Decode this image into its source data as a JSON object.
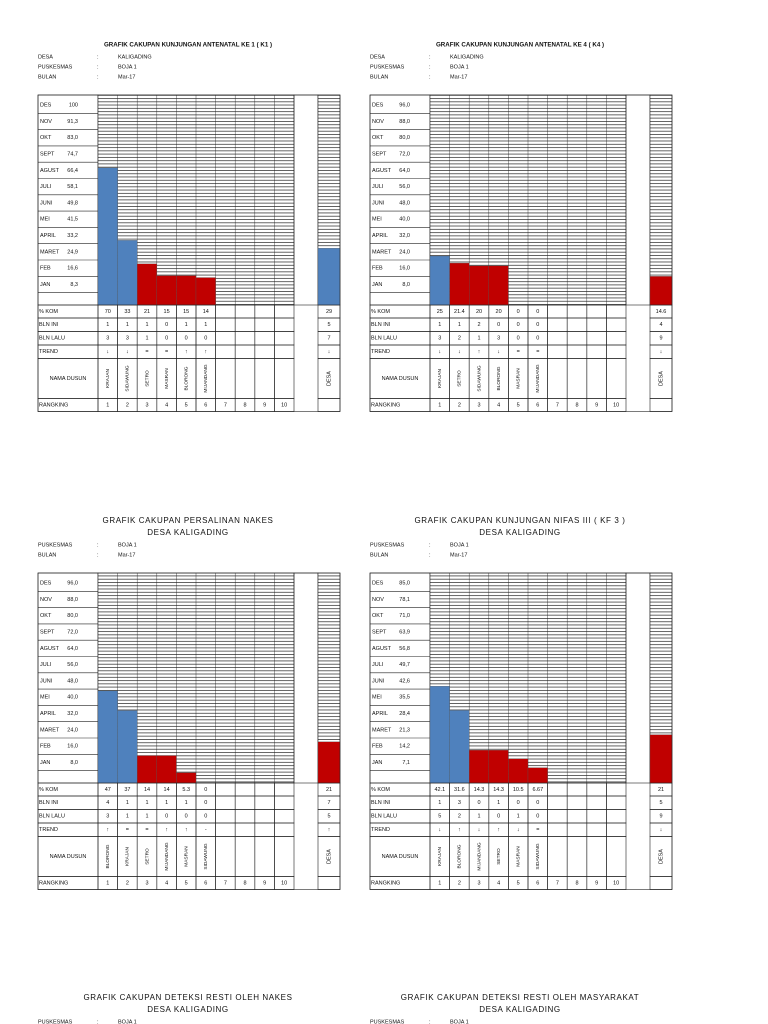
{
  "row_labels": {
    "kom": "% KOM",
    "bln_ini": "BLN INI",
    "bln_lalu": "BLN LALU",
    "trend": "TREND",
    "nama_dusun": "NAMA DUSUN",
    "rangking": "RANGKING"
  },
  "sep": ":",
  "panels": [
    {
      "title": "GRAFIK CAKUPAN KUNJUNGAN ANTENATAL KE 1 ( K1 )",
      "info": [
        {
          "label": "DESA",
          "value": "KALIGADING"
        },
        {
          "label": "PUSKESMAS",
          "value": "BOJA 1"
        },
        {
          "label": "BULAN",
          "value": "Mar-17"
        }
      ],
      "ylim": [
        0,
        100
      ],
      "months": [
        {
          "label": "DES",
          "target": "100"
        },
        {
          "label": "NOV",
          "target": "91,3"
        },
        {
          "label": "OKT",
          "target": "83,0"
        },
        {
          "label": "SEPT",
          "target": "74,7"
        },
        {
          "label": "AGUST",
          "target": "66,4"
        },
        {
          "label": "JULI",
          "target": "58,1"
        },
        {
          "label": "JUNI",
          "target": "49,8"
        },
        {
          "label": "MEI",
          "target": "41,5"
        },
        {
          "label": "APRIL",
          "target": "33,2"
        },
        {
          "label": "MARET",
          "target": "24,9"
        },
        {
          "label": "FEB",
          "target": "16,6"
        },
        {
          "label": "JAN",
          "target": "8,3"
        }
      ],
      "dusun": [
        {
          "name": "KRAJAN",
          "kom": 70,
          "bln_ini": 1,
          "bln_lalu": 3,
          "trend": "↓",
          "color": "#4f81bd"
        },
        {
          "name": "SIDAWUNG",
          "kom": 33,
          "bln_ini": 1,
          "bln_lalu": 3,
          "trend": "↓",
          "color": "#4f81bd"
        },
        {
          "name": "SETRO",
          "kom": 21,
          "bln_ini": 1,
          "bln_lalu": 1,
          "trend": "=",
          "color": "#c00000"
        },
        {
          "name": "MASRAN",
          "kom": 15,
          "bln_ini": 0,
          "bln_lalu": 0,
          "trend": "=",
          "color": "#c00000"
        },
        {
          "name": "BLORONG",
          "kom": 15,
          "bln_ini": 1,
          "bln_lalu": 0,
          "trend": "↑",
          "color": "#c00000"
        },
        {
          "name": "MIJANDANG",
          "kom": 14,
          "bln_ini": 1,
          "bln_lalu": 0,
          "trend": "↑",
          "color": "#c00000"
        }
      ],
      "desa": {
        "name": "DESA",
        "kom": 29,
        "bln_ini": 5,
        "bln_lalu": 7,
        "trend": "↓",
        "color": "#4f81bd"
      },
      "rangking": [
        1,
        2,
        3,
        4,
        5,
        6,
        7,
        8,
        9,
        10
      ]
    },
    {
      "title": "GRAFIK CAKUPAN KUNJUNGAN ANTENATAL KE 4 ( K4 )",
      "info": [
        {
          "label": "DESA",
          "value": "KALIGADING"
        },
        {
          "label": "PUSKESMAS",
          "value": "BOJA 1"
        },
        {
          "label": "BULAN",
          "value": "Mar-17"
        }
      ],
      "ylim": [
        0,
        100
      ],
      "months": [
        {
          "label": "DES",
          "target": "96,0"
        },
        {
          "label": "NOV",
          "target": "88,0"
        },
        {
          "label": "OKT",
          "target": "80,0"
        },
        {
          "label": "SEPT",
          "target": "72,0"
        },
        {
          "label": "AGUST",
          "target": "64,0"
        },
        {
          "label": "JULI",
          "target": "56,0"
        },
        {
          "label": "JUNI",
          "target": "48,0"
        },
        {
          "label": "MEI",
          "target": "40,0"
        },
        {
          "label": "APRIL",
          "target": "32,0"
        },
        {
          "label": "MARET",
          "target": "24,0"
        },
        {
          "label": "FEB",
          "target": "16,0"
        },
        {
          "label": "JAN",
          "target": "8,0"
        }
      ],
      "dusun": [
        {
          "name": "KRAJAN",
          "kom": 25,
          "bln_ini": 1,
          "bln_lalu": 3,
          "trend": "↓",
          "color": "#4f81bd"
        },
        {
          "name": "SETRO",
          "kom": 21.4,
          "bln_ini": 1,
          "bln_lalu": 2,
          "trend": "↓",
          "color": "#c00000"
        },
        {
          "name": "SIDAWUNG",
          "kom": 20,
          "bln_ini": 2,
          "bln_lalu": 1,
          "trend": "↑",
          "color": "#c00000"
        },
        {
          "name": "BLORONG",
          "kom": 20,
          "bln_ini": 0,
          "bln_lalu": 3,
          "trend": "↓",
          "color": "#c00000"
        },
        {
          "name": "MASRAN",
          "kom": 0,
          "bln_ini": 0,
          "bln_lalu": 0,
          "trend": "=",
          "color": "#c00000"
        },
        {
          "name": "MIJANDANG",
          "kom": 0,
          "bln_ini": 0,
          "bln_lalu": 0,
          "trend": "=",
          "color": "#c00000"
        }
      ],
      "desa": {
        "name": "DESA",
        "kom": 14.6,
        "bln_ini": 4,
        "bln_lalu": 9,
        "trend": "↓",
        "color": "#c00000"
      },
      "rangking": [
        1,
        2,
        3,
        4,
        5,
        6,
        7,
        8,
        9,
        10
      ]
    },
    {
      "title": "GRAFIK CAKUPAN PERSALINAN NAKES",
      "subtitle": "DESA KALIGADING",
      "info": [
        {
          "label": "PUSKESMAS",
          "value": "BOJA 1"
        },
        {
          "label": "BULAN",
          "value": "Mar-17"
        }
      ],
      "ylim": [
        0,
        100
      ],
      "months": [
        {
          "label": "DES",
          "target": "96,0"
        },
        {
          "label": "NOV",
          "target": "88,0"
        },
        {
          "label": "OKT",
          "target": "80,0"
        },
        {
          "label": "SEPT",
          "target": "72,0"
        },
        {
          "label": "AGUST",
          "target": "64,0"
        },
        {
          "label": "JULI",
          "target": "56,0"
        },
        {
          "label": "JUNI",
          "target": "48,0"
        },
        {
          "label": "MEI",
          "target": "40,0"
        },
        {
          "label": "APRIL",
          "target": "32,0"
        },
        {
          "label": "MARET",
          "target": "24,0"
        },
        {
          "label": "FEB",
          "target": "16,0"
        },
        {
          "label": "JAN",
          "target": "8,0"
        }
      ],
      "dusun": [
        {
          "name": "BLORONG",
          "kom": 47,
          "bln_ini": 4,
          "bln_lalu": 3,
          "trend": "↑",
          "color": "#4f81bd"
        },
        {
          "name": "KRAJAN",
          "kom": 37,
          "bln_ini": 1,
          "bln_lalu": 1,
          "trend": "=",
          "color": "#4f81bd"
        },
        {
          "name": "SETRO",
          "kom": 14,
          "bln_ini": 1,
          "bln_lalu": 1,
          "trend": "=",
          "color": "#c00000"
        },
        {
          "name": "MIJANDANG",
          "kom": 14,
          "bln_ini": 1,
          "bln_lalu": 0,
          "trend": "↑",
          "color": "#c00000"
        },
        {
          "name": "MASRAN",
          "kom": 5.3,
          "bln_ini": 1,
          "bln_lalu": 0,
          "trend": "↑",
          "color": "#c00000"
        },
        {
          "name": "SIDAWUNG",
          "kom": 0,
          "bln_ini": 0,
          "bln_lalu": 0,
          "trend": "-",
          "color": "#c00000"
        }
      ],
      "desa": {
        "name": "DESA",
        "kom": 21,
        "bln_ini": 7,
        "bln_lalu": 5,
        "trend": "↑",
        "color": "#c00000"
      },
      "rangking": [
        1,
        2,
        3,
        4,
        5,
        6,
        7,
        8,
        9,
        10
      ]
    },
    {
      "title": "GRAFIK CAKUPAN KUNJUNGAN NIFAS III ( KF 3 )",
      "subtitle": "DESA KALIGADING",
      "info": [
        {
          "label": "PUSKESMAS",
          "value": "BOJA 1"
        },
        {
          "label": "BULAN",
          "value": "Mar-17"
        }
      ],
      "ylim": [
        0,
        85.2
      ],
      "months": [
        {
          "label": "DES",
          "target": "85,0"
        },
        {
          "label": "NOV",
          "target": "78,1"
        },
        {
          "label": "OKT",
          "target": "71,0"
        },
        {
          "label": "SEPT",
          "target": "63,9"
        },
        {
          "label": "AGUST",
          "target": "56,8"
        },
        {
          "label": "JULI",
          "target": "49,7"
        },
        {
          "label": "JUNI",
          "target": "42,6"
        },
        {
          "label": "MEI",
          "target": "35,5"
        },
        {
          "label": "APRIL",
          "target": "28,4"
        },
        {
          "label": "MARET",
          "target": "21,3"
        },
        {
          "label": "FEB",
          "target": "14,2"
        },
        {
          "label": "JAN",
          "target": "7,1"
        }
      ],
      "dusun": [
        {
          "name": "KRAJAN",
          "kom": 42.1,
          "bln_ini": 1,
          "bln_lalu": 5,
          "trend": "↓",
          "color": "#4f81bd"
        },
        {
          "name": "BLORONG",
          "kom": 31.6,
          "bln_ini": 3,
          "bln_lalu": 2,
          "trend": "↑",
          "color": "#4f81bd"
        },
        {
          "name": "MIJANDANG",
          "kom": 14.3,
          "bln_ini": 0,
          "bln_lalu": 1,
          "trend": "↓",
          "color": "#c00000"
        },
        {
          "name": "SETRO",
          "kom": 14.3,
          "bln_ini": 1,
          "bln_lalu": 0,
          "trend": "↑",
          "color": "#c00000"
        },
        {
          "name": "MASRAN",
          "kom": 10.5,
          "bln_ini": 0,
          "bln_lalu": 1,
          "trend": "↓",
          "color": "#c00000"
        },
        {
          "name": "SIDAWUNG",
          "kom": 6.67,
          "bln_ini": 0,
          "bln_lalu": 0,
          "trend": "=",
          "color": "#c00000"
        }
      ],
      "desa": {
        "name": "DESA",
        "kom": 21,
        "bln_ini": 5,
        "bln_lalu": 9,
        "trend": "↓",
        "color": "#c00000"
      },
      "rangking": [
        1,
        2,
        3,
        4,
        5,
        6,
        7,
        8,
        9,
        10
      ]
    },
    {
      "title": "GRAFIK CAKUPAN DETEKSI RESTI OLEH NAKES",
      "subtitle": "DESA KALIGADING",
      "info": [
        {
          "label": "PUSKESMAS",
          "value": "BOJA 1"
        }
      ]
    },
    {
      "title": "GRAFIK CAKUPAN DETEKSI RESTI OLEH MASYARAKAT",
      "subtitle": "DESA KALIGADING",
      "info": [
        {
          "label": "PUSKESMAS",
          "value": "BOJA 1"
        }
      ]
    }
  ]
}
